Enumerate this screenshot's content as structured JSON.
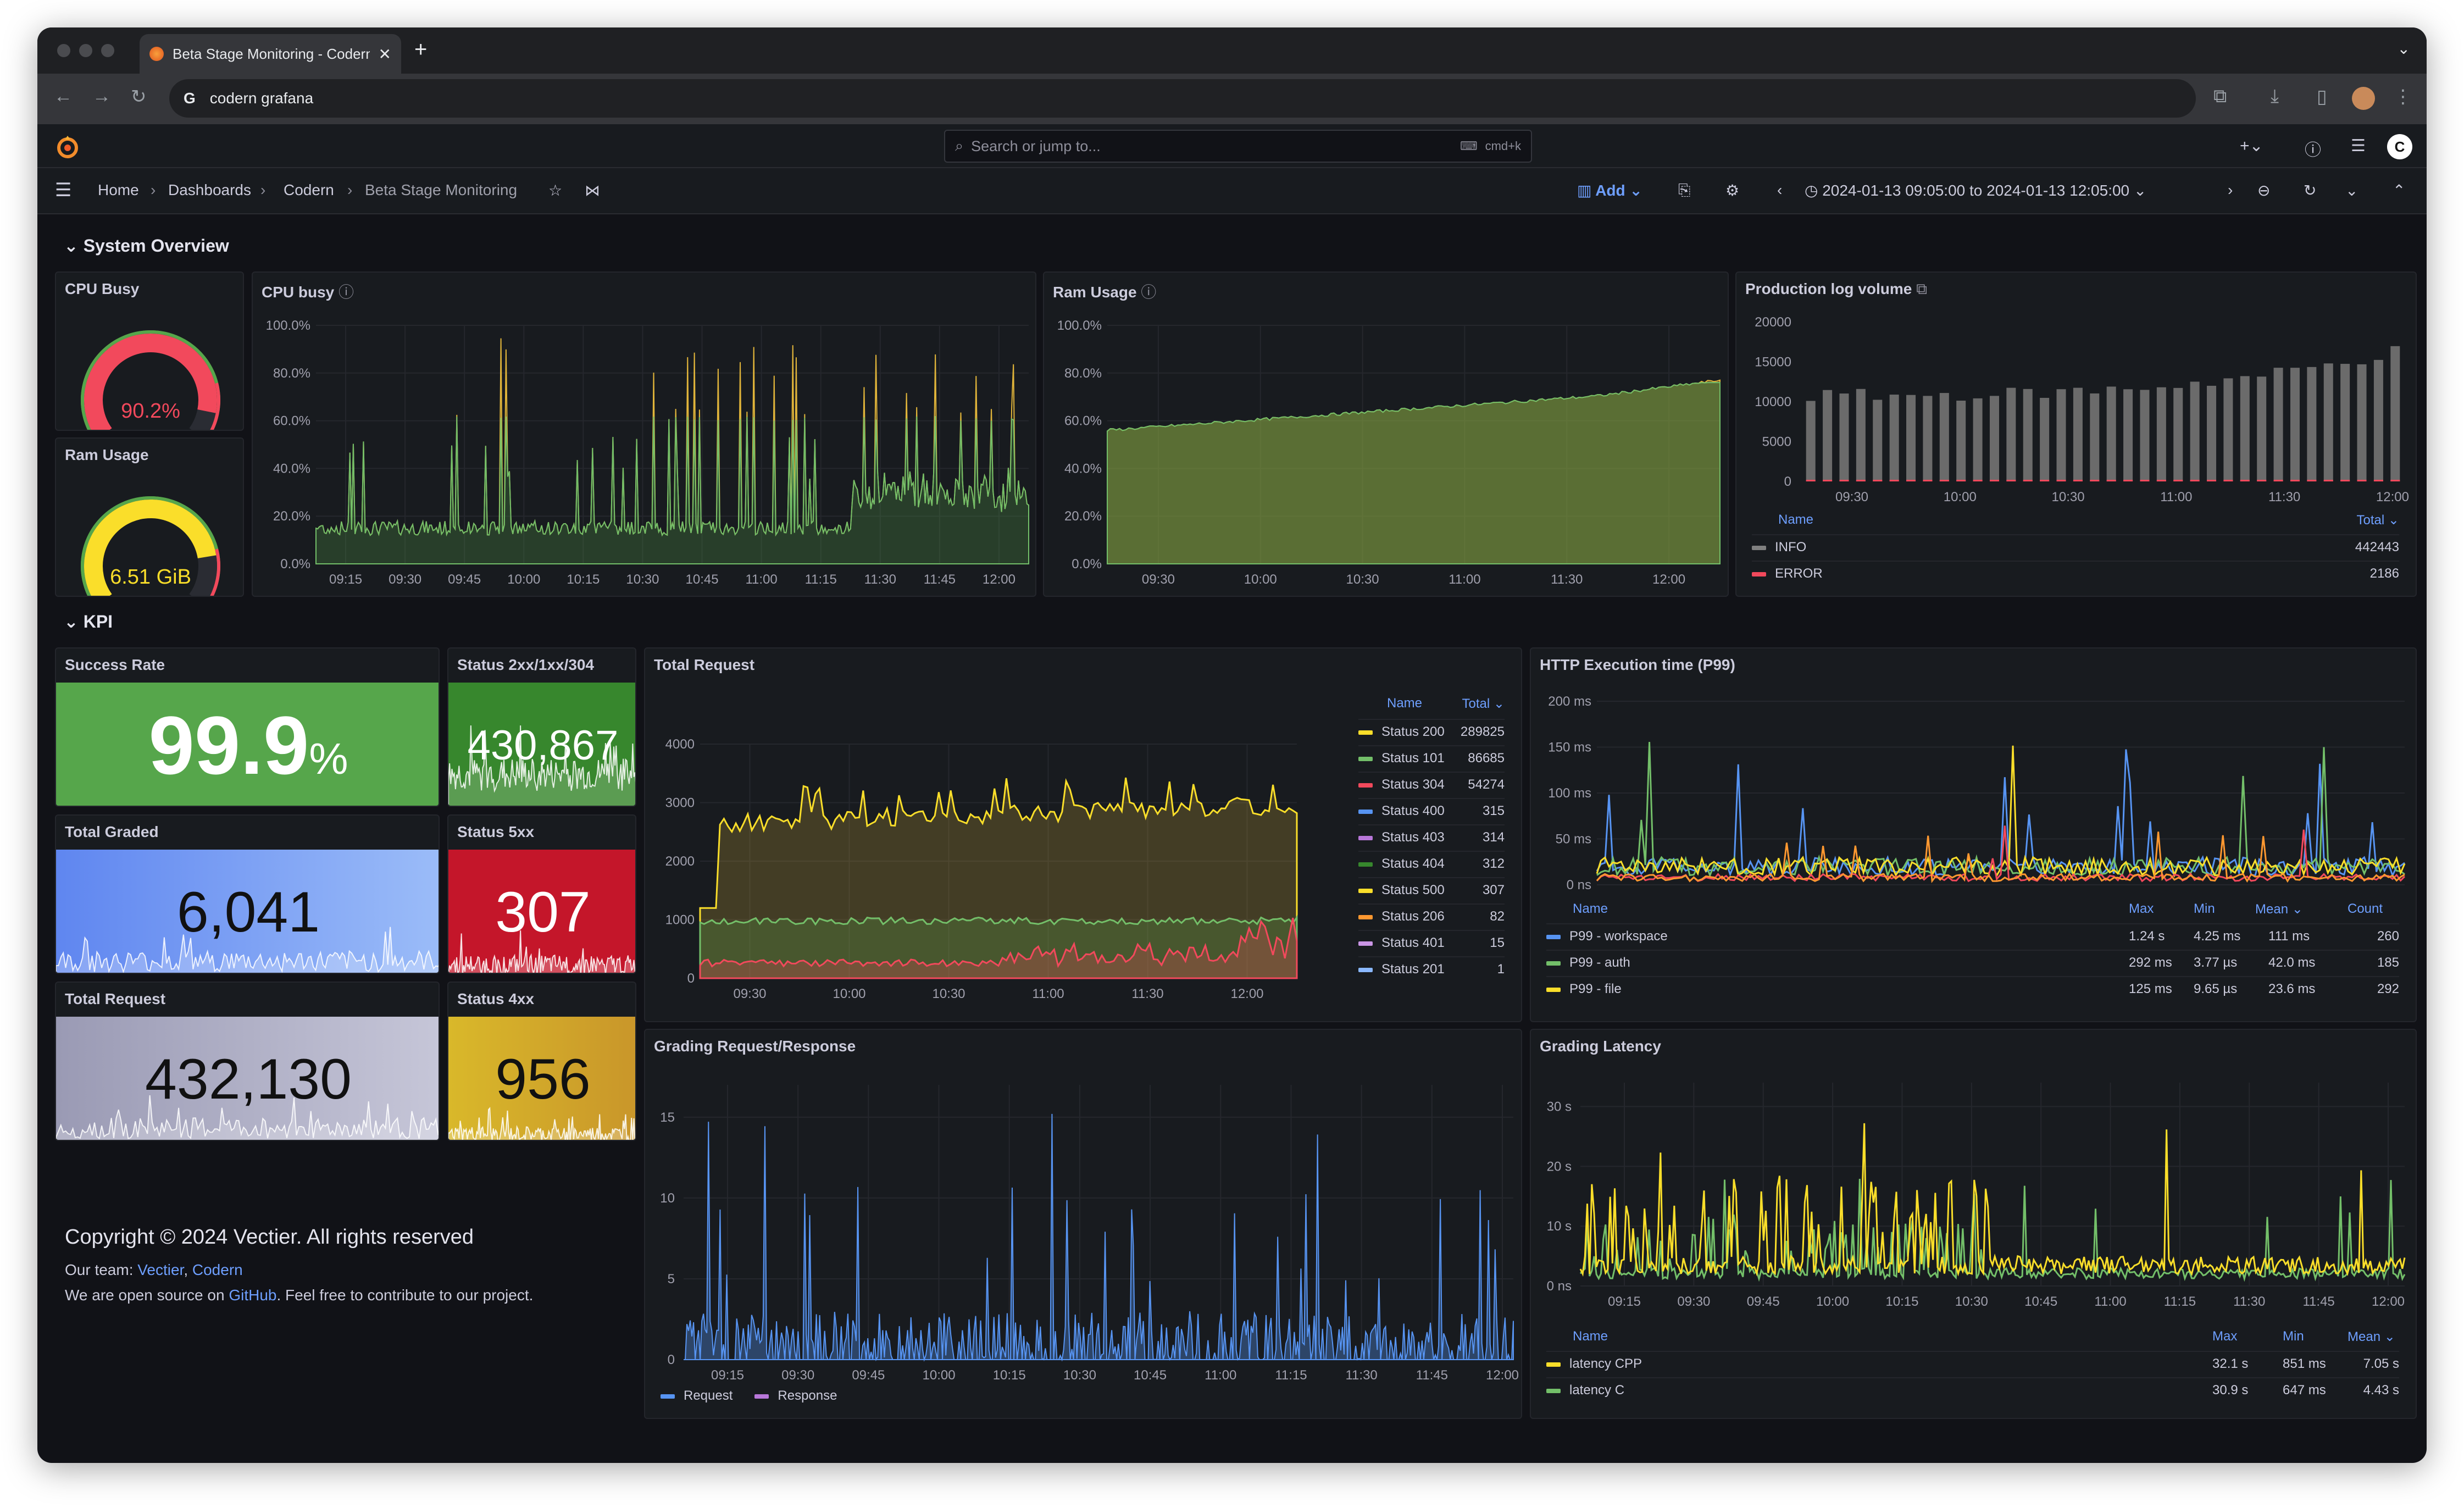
{
  "browser": {
    "tab_title": "Beta Stage Monitoring - Codern",
    "address": "codern grafana"
  },
  "grafana": {
    "search_placeholder": "Search or jump to...",
    "search_shortcut": "cmd+k",
    "breadcrumbs": [
      "Home",
      "Dashboards",
      "Codern",
      "Beta Stage Monitoring"
    ],
    "add_label": "Add",
    "time_range": "2024-01-13 09:05:00 to 2024-01-13 12:05:00"
  },
  "sections": {
    "system": "System Overview",
    "kpi": "KPI"
  },
  "gauges": [
    {
      "title": "CPU Busy",
      "value": "90.2%",
      "fraction": 0.902,
      "color": "#f2495c"
    },
    {
      "title": "Ram Usage",
      "value": "6.51 GiB",
      "fraction": 0.82,
      "color": "#fade2a"
    }
  ],
  "cpu_panel": {
    "title": "CPU busy",
    "y_ticks": [
      "100.0%",
      "80.0%",
      "60.0%",
      "40.0%",
      "20.0%",
      "0.0%"
    ],
    "x_ticks": [
      "09:15",
      "09:30",
      "09:45",
      "10:00",
      "10:15",
      "10:30",
      "10:45",
      "11:00",
      "11:15",
      "11:30",
      "11:45",
      "12:00"
    ]
  },
  "ram_panel": {
    "title": "Ram Usage",
    "y_ticks": [
      "100.0%",
      "80.0%",
      "60.0%",
      "40.0%",
      "20.0%",
      "0.0%"
    ],
    "x_ticks": [
      "09:30",
      "10:00",
      "10:30",
      "11:00",
      "11:30",
      "12:00"
    ]
  },
  "log_panel": {
    "title": "Production log volume",
    "y_ticks": [
      "20000",
      "15000",
      "10000",
      "5000",
      "0"
    ],
    "x_ticks": [
      "09:30",
      "10:00",
      "10:30",
      "11:00",
      "11:30",
      "12:00"
    ],
    "legend_header": {
      "name": "Name",
      "total": "Total"
    },
    "legend": [
      {
        "name": "INFO",
        "total": "442443",
        "color": "#808080"
      },
      {
        "name": "ERROR",
        "total": "2186",
        "color": "#f2495c"
      }
    ]
  },
  "stats": {
    "success_rate": {
      "title": "Success Rate",
      "value": "99.9",
      "unit": "%"
    },
    "status_2xx": {
      "title": "Status 2xx/1xx/304",
      "value": "430,867"
    },
    "total_graded": {
      "title": "Total Graded",
      "value": "6,041"
    },
    "status_5xx": {
      "title": "Status 5xx",
      "value": "307"
    },
    "total_request": {
      "title": "Total Request",
      "value": "432,130"
    },
    "status_4xx": {
      "title": "Status 4xx",
      "value": "956"
    }
  },
  "total_request_panel": {
    "title": "Total Request",
    "y_ticks": [
      "4000",
      "3000",
      "2000",
      "1000",
      "0"
    ],
    "x_ticks": [
      "09:30",
      "10:00",
      "10:30",
      "11:00",
      "11:30",
      "12:00"
    ],
    "legend_header": {
      "name": "Name",
      "total": "Total"
    },
    "legend": [
      {
        "name": "Status 200",
        "total": "289825",
        "color": "#fade2a"
      },
      {
        "name": "Status 101",
        "total": "86685",
        "color": "#73bf69"
      },
      {
        "name": "Status 304",
        "total": "54274",
        "color": "#f2495c"
      },
      {
        "name": "Status 400",
        "total": "315",
        "color": "#5794f2"
      },
      {
        "name": "Status 403",
        "total": "314",
        "color": "#b877d9"
      },
      {
        "name": "Status 404",
        "total": "312",
        "color": "#37872d"
      },
      {
        "name": "Status 500",
        "total": "307",
        "color": "#fade2a"
      },
      {
        "name": "Status 206",
        "total": "82",
        "color": "#ff9830"
      },
      {
        "name": "Status 401",
        "total": "15",
        "color": "#ca95e5"
      },
      {
        "name": "Status 201",
        "total": "1",
        "color": "#8ab8ff"
      }
    ]
  },
  "http_panel": {
    "title": "HTTP Execution time (P99)",
    "y_ticks": [
      "200 ms",
      "150 ms",
      "100 ms",
      "50 ms",
      "0 ns"
    ],
    "legend_header": {
      "name": "Name",
      "max": "Max",
      "min": "Min",
      "mean": "Mean",
      "count": "Count"
    },
    "legend": [
      {
        "name": "P99 - workspace",
        "max": "1.24 s",
        "min": "4.25 ms",
        "mean": "111 ms",
        "count": "260",
        "color": "#5794f2"
      },
      {
        "name": "P99 - auth",
        "max": "292 ms",
        "min": "3.77 µs",
        "mean": "42.0 ms",
        "count": "185",
        "color": "#73bf69"
      },
      {
        "name": "P99 - file",
        "max": "125 ms",
        "min": "9.65 µs",
        "mean": "23.6 ms",
        "count": "292",
        "color": "#fade2a"
      }
    ]
  },
  "grading_panel": {
    "title": "Grading Request/Response",
    "y_ticks": [
      "15",
      "10",
      "5",
      "0"
    ],
    "x_ticks": [
      "09:15",
      "09:30",
      "09:45",
      "10:00",
      "10:15",
      "10:30",
      "10:45",
      "11:00",
      "11:15",
      "11:30",
      "11:45",
      "12:00"
    ],
    "legend": [
      {
        "name": "Request",
        "color": "#5794f2"
      },
      {
        "name": "Response",
        "color": "#b877d9"
      }
    ]
  },
  "latency_panel": {
    "title": "Grading Latency",
    "y_ticks": [
      "30 s",
      "20 s",
      "10 s",
      "0 ns"
    ],
    "x_ticks": [
      "09:15",
      "09:30",
      "09:45",
      "10:00",
      "10:15",
      "10:30",
      "10:45",
      "11:00",
      "11:15",
      "11:30",
      "11:45",
      "12:00"
    ],
    "legend_header": {
      "name": "Name",
      "max": "Max",
      "min": "Min",
      "mean": "Mean"
    },
    "legend": [
      {
        "name": "latency CPP",
        "max": "32.1 s",
        "min": "851 ms",
        "mean": "7.05 s",
        "color": "#fade2a"
      },
      {
        "name": "latency C",
        "max": "30.9 s",
        "min": "647 ms",
        "mean": "4.43 s",
        "color": "#73bf69"
      }
    ]
  },
  "footer": {
    "copyright": "Copyright © 2024 Vectier. All rights reserved",
    "team_prefix": "Our team: ",
    "team_link1": "Vectier",
    "team_sep": ", ",
    "team_link2": "Codern",
    "os_prefix": "We are open source on ",
    "os_link": "GitHub",
    "os_suffix": ". Feel free to contribute to our project."
  }
}
